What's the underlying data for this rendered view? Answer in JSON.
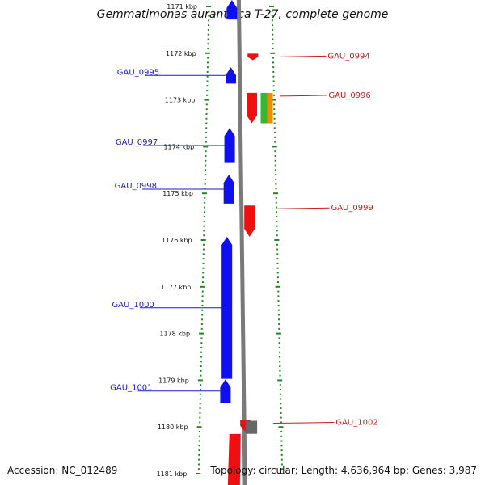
{
  "title": "Gemmatimonas aurantiaca T-27, complete genome",
  "footer": {
    "accession": "Accession: NC_012489",
    "topology": "Topology: circular; Length: 4,636,964 bp; Genes: 3,987"
  },
  "colors": {
    "forward_strand": "#1010ee",
    "reverse_strand": "#ee1010",
    "ruler": "#1a8a1a",
    "backbone": "#7a7a7a",
    "extra_gene_green": "#33b833",
    "extra_gene_orange": "#f08c00",
    "extra_gene_gray": "#666666",
    "left_label": "#1a1acc",
    "right_label": "#cc1a1a"
  },
  "ruler": {
    "unit": "kbp",
    "ticks": [
      {
        "kbp": 1171,
        "label": "1171 kbp"
      },
      {
        "kbp": 1172,
        "label": "1172 kbp"
      },
      {
        "kbp": 1173,
        "label": "1173 kbp"
      },
      {
        "kbp": 1174,
        "label": "1174 kbp"
      },
      {
        "kbp": 1175,
        "label": "1175 kbp"
      },
      {
        "kbp": 1176,
        "label": "1176 kbp"
      },
      {
        "kbp": 1177,
        "label": "1177 kbp"
      },
      {
        "kbp": 1178,
        "label": "1178 kbp"
      },
      {
        "kbp": 1179,
        "label": "1179 kbp"
      },
      {
        "kbp": 1180,
        "label": "1180 kbp"
      },
      {
        "kbp": 1181,
        "label": "1181 kbp"
      }
    ]
  },
  "genes": [
    {
      "name": "GAU_0994",
      "strand": "-",
      "start_kbp": 1172.01,
      "end_kbp": 1172.15,
      "label_side": "right",
      "labeled": true
    },
    {
      "name": "GAU_0995",
      "strand": "+",
      "start_kbp": 1172.3,
      "end_kbp": 1172.65,
      "label_side": "left",
      "labeled": true
    },
    {
      "name": "GAU_0996",
      "strand": "-",
      "start_kbp": 1172.85,
      "end_kbp": 1173.5,
      "label_side": "right",
      "labeled": true
    },
    {
      "name": "GAU_0997",
      "strand": "+",
      "start_kbp": 1173.6,
      "end_kbp": 1174.35,
      "label_side": "left",
      "labeled": true
    },
    {
      "name": "GAU_0998",
      "strand": "+",
      "start_kbp": 1174.6,
      "end_kbp": 1175.22,
      "label_side": "left",
      "labeled": true
    },
    {
      "name": "GAU_0999",
      "strand": "-",
      "start_kbp": 1175.26,
      "end_kbp": 1175.93,
      "label_side": "right",
      "labeled": true
    },
    {
      "name": "GAU_1000",
      "strand": "+",
      "start_kbp": 1175.93,
      "end_kbp": 1178.97,
      "label_side": "left",
      "labeled": true
    },
    {
      "name": "GAU_1001",
      "strand": "+",
      "start_kbp": 1178.98,
      "end_kbp": 1179.48,
      "label_side": "left",
      "labeled": true
    },
    {
      "name": "GAU_1002",
      "strand": "-",
      "start_kbp": 1179.85,
      "end_kbp": 1180.1,
      "label_side": "right",
      "labeled": true
    }
  ],
  "extra_features": [
    {
      "kind": "green",
      "start_kbp": 1172.85,
      "end_kbp": 1173.5
    },
    {
      "kind": "orange",
      "start_kbp": 1172.85,
      "end_kbp": 1173.5
    },
    {
      "kind": "gray",
      "start_kbp": 1179.85,
      "end_kbp": 1180.13
    },
    {
      "kind": "forward_top",
      "strand": "+",
      "start_kbp": 1171.0,
      "end_kbp": 1171.28
    },
    {
      "kind": "reverse_bottom",
      "strand": "-",
      "start_kbp": 1180.15,
      "end_kbp": 1181.3
    }
  ]
}
